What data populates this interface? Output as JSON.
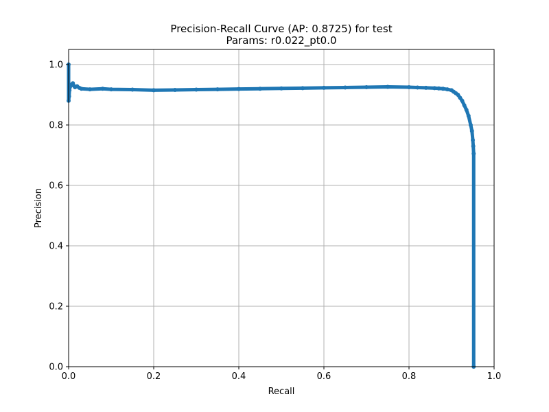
{
  "chart_data": {
    "type": "line",
    "title": "Precision-Recall Curve (AP: 0.8725) for test",
    "subtitle": "Params: r0.022_pt0.0",
    "xlabel": "Recall",
    "ylabel": "Precision",
    "xlim": [
      0.0,
      1.0
    ],
    "ylim": [
      0.0,
      1.05
    ],
    "xticks": [
      "0.0",
      "0.2",
      "0.4",
      "0.6",
      "0.8",
      "1.0"
    ],
    "yticks": [
      "0.0",
      "0.2",
      "0.4",
      "0.6",
      "0.8",
      "1.0"
    ],
    "grid": true,
    "marker": "circle",
    "series": [
      {
        "color": "#1f77b4",
        "x": [
          0.0,
          0.0,
          0.001,
          0.002,
          0.003,
          0.005,
          0.008,
          0.01,
          0.012,
          0.015,
          0.02,
          0.025,
          0.03,
          0.05,
          0.08,
          0.1,
          0.15,
          0.2,
          0.25,
          0.3,
          0.35,
          0.4,
          0.45,
          0.5,
          0.55,
          0.6,
          0.65,
          0.7,
          0.75,
          0.8,
          0.82,
          0.84,
          0.86,
          0.87,
          0.88,
          0.89,
          0.9,
          0.905,
          0.91,
          0.915,
          0.92,
          0.925,
          0.93,
          0.935,
          0.94,
          0.945,
          0.948,
          0.95,
          0.951,
          0.952,
          0.952
        ],
        "y": [
          1.0,
          0.88,
          0.895,
          0.915,
          0.925,
          0.932,
          0.935,
          0.938,
          0.93,
          0.925,
          0.928,
          0.923,
          0.92,
          0.918,
          0.92,
          0.918,
          0.917,
          0.915,
          0.916,
          0.917,
          0.918,
          0.919,
          0.92,
          0.921,
          0.922,
          0.923,
          0.924,
          0.925,
          0.926,
          0.925,
          0.924,
          0.923,
          0.922,
          0.921,
          0.92,
          0.918,
          0.915,
          0.91,
          0.905,
          0.9,
          0.89,
          0.88,
          0.865,
          0.85,
          0.83,
          0.8,
          0.78,
          0.75,
          0.73,
          0.705,
          0.0
        ]
      }
    ]
  }
}
